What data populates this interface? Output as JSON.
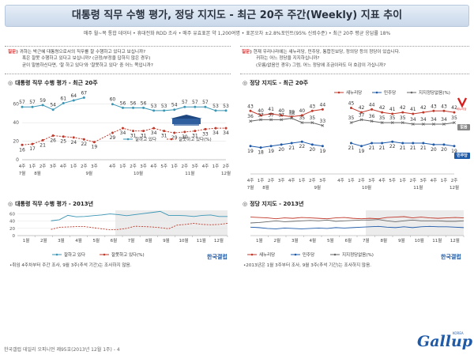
{
  "title": "대통령 직무 수행 평가, 정당 지지도 - 최근 20주 주간(Weekly) 지표 추이",
  "subtitle": "매주 월~목 통합 데이터 • 휴대전화 RDD 조사 • 매주 유효표본 약 1,200여명 • 표본오차 ±2.8%포인트(95% 신뢰수준) • 최근 20주 평균 응답률 18%",
  "question_left": {
    "tag": "질문)",
    "lines": [
      "귀하는 박근혜 대통령으로서의 직무를 잘 수행하고 있다고 보십니까?",
      "혹은 잘못 수행하고 있다고 보십니까? (긍정/부정을 답하지 않은 경우)",
      "굳이 말씀하신다면, '잘 하고 있다'와 '잘못하고 있다' 중 어느 쪽입니까?"
    ]
  },
  "question_right": {
    "tag": "질문)",
    "lines": [
      "현재 우리나라에는 새누리당, 민주당, 통합진보당, 정의당 등의 정당이 있습니다.",
      "귀하는 어느 정당을 지지하십니까?",
      "(모름/없음인 경우) 그럼, 어느 정당에 조금이라도 더 호감이 가십니까?"
    ]
  },
  "sections": {
    "approval_recent": "대통령 직무 수행 평가 - 최근 20주",
    "party_recent": "정당 지지도 - 최근 20주",
    "approval_2013": "대통령 직무 수행 평가 - 2013년",
    "party_2013": "정당 지지도 - 2013년"
  },
  "notes": {
    "left": "•취임 4주차부터 주간 조사, 9월 3주(추석 기간)는 조사하지 않음.",
    "right": "•2013년은 1월 3주부터 조사, 9월 3주(추석 기간)는 조사하지 않음."
  },
  "badges": {
    "undecided": "없음",
    "democratic": "민주당",
    "saenuri": "새누리당"
  },
  "brand_tag": "한국갤럽",
  "footer": "한국갤럽 데일리 오피니언 제95호(2013년 12월 1주) - 4",
  "logo": "Gallup",
  "logo_sub": "KOREA",
  "chart_data": [
    {
      "id": "approval_recent",
      "type": "line",
      "title": "대통령 직무 수행 평가 - 최근 20주",
      "categories": [
        "4주",
        "1주",
        "2주",
        "3주",
        "4주",
        "1주",
        "2주",
        "3주",
        "4주",
        "1주",
        "2주",
        "3주",
        "4주",
        "5주",
        "1주",
        "2주",
        "3주",
        "4주",
        "1주",
        "2주"
      ],
      "month_labels": [
        {
          "label": "7월",
          "idx": 0
        },
        {
          "label": "8월",
          "idx": 1.5
        },
        {
          "label": "9월",
          "idx": 6.5
        },
        {
          "label": "10월",
          "idx": 10.5
        },
        {
          "label": "11월",
          "idx": 15.5
        },
        {
          "label": "12월",
          "idx": 19
        }
      ],
      "ylim": [
        0,
        70
      ],
      "yticks": [
        0,
        20,
        40,
        60
      ],
      "grid": true,
      "gap_after_index": 7,
      "series": [
        {
          "name": "잘하고 있다",
          "color": "#3a96b5",
          "dash": false,
          "values": [
            57,
            57,
            59,
            54,
            61,
            64,
            67,
            null,
            60,
            56,
            56,
            56,
            53,
            53,
            54,
            57,
            57,
            57,
            53,
            53
          ]
        },
        {
          "name": "잘못하고 있다(%)",
          "color": "#c0392b",
          "dash": true,
          "values": [
            16,
            17,
            21,
            26,
            25,
            24,
            22,
            19,
            29,
            34,
            31,
            31,
            34,
            31,
            29,
            30,
            31,
            33,
            34,
            34
          ]
        }
      ],
      "labels_high": [
        57,
        57,
        59,
        54,
        61,
        64,
        67,
        null,
        60,
        56,
        56,
        56,
        53,
        53,
        54,
        57,
        57,
        57,
        53,
        53
      ],
      "labels_low": [
        16,
        17,
        21,
        26,
        25,
        24,
        22,
        19,
        29,
        34,
        31,
        31,
        34,
        31,
        29,
        30,
        31,
        33,
        34,
        34
      ],
      "legend_placement": "bottom-right"
    },
    {
      "id": "party_recent",
      "type": "line",
      "title": "정당 지지도 - 최근 20주",
      "categories": [
        "4주",
        "1주",
        "2주",
        "3주",
        "4주",
        "1주",
        "2주",
        "3주",
        "4주",
        "1주",
        "2주",
        "3주",
        "4주",
        "5주",
        "1주",
        "2주",
        "3주",
        "4주",
        "1주",
        "2주"
      ],
      "month_labels": [
        {
          "label": "7월",
          "idx": 0
        },
        {
          "label": "8월",
          "idx": 1.5
        },
        {
          "label": "9월",
          "idx": 6.5
        },
        {
          "label": "10월",
          "idx": 10.5
        },
        {
          "label": "11월",
          "idx": 15.5
        },
        {
          "label": "12월",
          "idx": 19
        }
      ],
      "ylim": [
        0,
        55
      ],
      "grid": false,
      "gap_after_index": 7,
      "series": [
        {
          "name": "새누리당",
          "color": "#c0392b",
          "values": [
            43,
            40,
            41,
            40,
            39,
            40,
            43,
            44,
            null,
            45,
            42,
            44,
            42,
            41,
            42,
            41,
            42,
            43,
            43,
            42
          ]
        },
        {
          "name": "민주당",
          "color": "#1e5aa8",
          "values": [
            19,
            18,
            19,
            20,
            21,
            22,
            20,
            19,
            null,
            21,
            19,
            21,
            21,
            22,
            21,
            21,
            21,
            20,
            20,
            19
          ]
        },
        {
          "name": "지지정당없음(%)",
          "color": "#666",
          "values": [
            36,
            37,
            37,
            37,
            38,
            35,
            35,
            33,
            null,
            35,
            37,
            36,
            35,
            35,
            35,
            34,
            34,
            34,
            34,
            35
          ]
        }
      ],
      "legend_placement": "top-right"
    },
    {
      "id": "approval_2013",
      "type": "line",
      "title": "대통령 직무 수행 평가 - 2013년",
      "months": [
        "1월",
        "2월",
        "3월",
        "4월",
        "5월",
        "6월",
        "7월",
        "8월",
        "9월",
        "10월",
        "11월",
        "12월"
      ],
      "ylim": [
        0,
        70
      ],
      "yticks": [
        0,
        20,
        40,
        60
      ],
      "series": [
        {
          "name": "잘하고 있다",
          "color": "#3a96b5",
          "values": [
            null,
            null,
            null,
            null,
            41,
            44,
            56,
            52,
            53,
            55,
            57,
            60,
            58,
            55,
            58,
            61,
            64,
            67,
            56,
            56,
            55,
            53,
            56,
            57,
            53,
            53
          ]
        },
        {
          "name": "잘못하고 있다(%)",
          "color": "#c0392b",
          "values": [
            null,
            null,
            null,
            null,
            17,
            23,
            24,
            25,
            25,
            22,
            19,
            16,
            17,
            20,
            26,
            25,
            24,
            22,
            19,
            29,
            31,
            34,
            31,
            30,
            31,
            34
          ]
        }
      ],
      "legend_placement": "bottom-center"
    },
    {
      "id": "party_2013",
      "type": "line",
      "title": "정당 지지도 - 2013년",
      "months": [
        "1월",
        "2월",
        "3월",
        "4월",
        "5월",
        "6월",
        "7월",
        "8월",
        "9월",
        "10월",
        "11월",
        "12월"
      ],
      "ylim": [
        0,
        60
      ],
      "series": [
        {
          "name": "새누리당",
          "color": "#c0392b",
          "values": [
            44,
            43,
            42,
            40,
            42,
            41,
            43,
            42,
            41,
            40,
            42,
            43,
            41,
            40,
            41,
            40,
            43,
            44,
            45,
            42,
            44,
            42,
            41,
            42,
            43,
            42
          ]
        },
        {
          "name": "민주당",
          "color": "#1e5aa8",
          "values": [
            20,
            19,
            17,
            16,
            18,
            17,
            16,
            17,
            18,
            17,
            19,
            18,
            19,
            20,
            21,
            22,
            20,
            19,
            21,
            19,
            21,
            22,
            21,
            21,
            20,
            19
          ]
        },
        {
          "name": "지지정당없음(%)",
          "color": "#666",
          "values": [
            30,
            31,
            33,
            35,
            33,
            34,
            35,
            36,
            35,
            37,
            34,
            35,
            36,
            37,
            37,
            38,
            35,
            33,
            35,
            37,
            35,
            35,
            35,
            34,
            34,
            35
          ]
        }
      ],
      "legend_placement": "bottom-center"
    }
  ]
}
